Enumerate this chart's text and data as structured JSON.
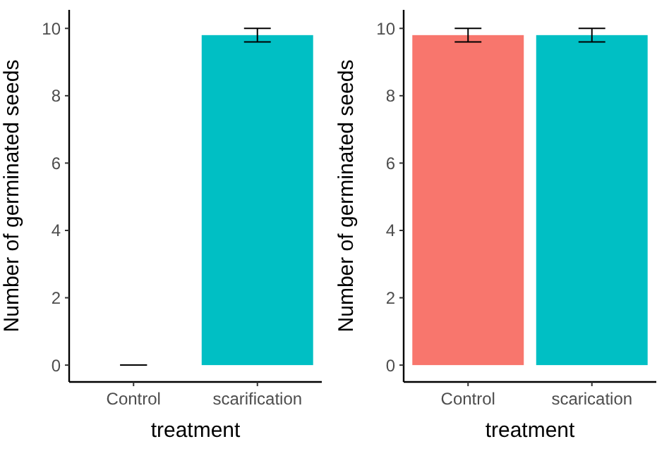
{
  "chart_data": [
    {
      "type": "bar",
      "xlabel": "treatment",
      "ylabel": "Number of germinated seeds",
      "categories": [
        "Control",
        "scarification"
      ],
      "values": [
        0,
        9.8
      ],
      "colors": [
        "#f8766d",
        "#00bfc4"
      ],
      "errors": [
        [
          0,
          0
        ],
        [
          9.6,
          10
        ]
      ],
      "ylim": [
        -0.5,
        10.55
      ],
      "yticks": [
        0,
        2,
        4,
        6,
        8,
        10
      ],
      "grid": false
    },
    {
      "type": "bar",
      "xlabel": "treatment",
      "ylabel": "Number of germinated seeds",
      "categories": [
        "Control",
        "scarication"
      ],
      "values": [
        9.8,
        9.8
      ],
      "colors": [
        "#f8766d",
        "#00bfc4"
      ],
      "errors": [
        [
          9.6,
          10
        ],
        [
          9.6,
          10
        ]
      ],
      "ylim": [
        -0.5,
        10.55
      ],
      "yticks": [
        0,
        2,
        4,
        6,
        8,
        10
      ],
      "grid": false
    }
  ]
}
